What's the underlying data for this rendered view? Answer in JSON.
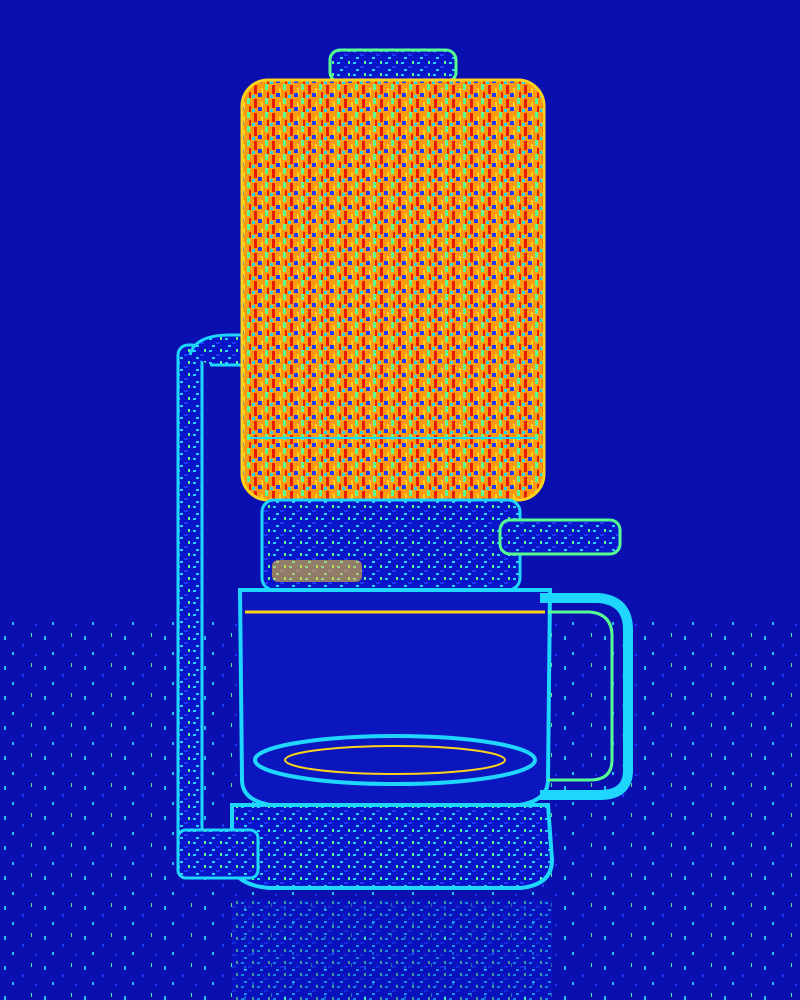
{
  "image": {
    "subject": "coffee-maker",
    "style": "jet-colormap-edge-map",
    "colors": {
      "background": "#0a0fb0",
      "deep_blue": "#0000a8",
      "blue": "#1e3cff",
      "cyan": "#1fd6ff",
      "green": "#56ff8f",
      "yellow": "#ffd21a",
      "orange": "#ff8a00",
      "red": "#e81c00"
    }
  }
}
